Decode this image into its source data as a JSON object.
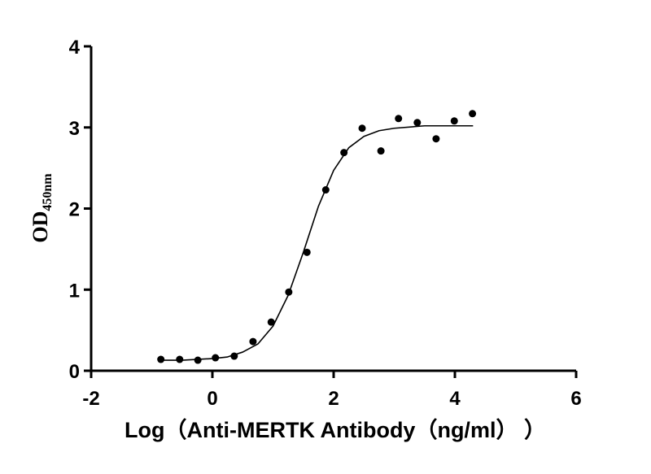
{
  "chart_data": {
    "type": "scatter",
    "y_label": "OD",
    "y_label_sub": "450nm",
    "x_label": "Log（Anti-MERTK Antibody（ng/ml）  ）",
    "xlim": [
      -2,
      6
    ],
    "xticks": [
      -2,
      0,
      2,
      4,
      6
    ],
    "ylim": [
      0,
      4
    ],
    "yticks": [
      0,
      1,
      2,
      3,
      4
    ],
    "series": [
      {
        "type": "scatter",
        "color": "#000000",
        "x": [
          -0.85,
          -0.54,
          -0.24,
          0.05,
          0.36,
          0.67,
          0.97,
          1.26,
          1.56,
          1.87,
          2.17,
          2.47,
          2.78,
          3.07,
          3.38,
          3.69,
          3.99,
          4.29
        ],
        "values": [
          0.14,
          0.14,
          0.13,
          0.16,
          0.18,
          0.36,
          0.6,
          0.97,
          1.46,
          2.23,
          2.69,
          2.99,
          2.71,
          3.11,
          3.06,
          2.86,
          3.08,
          3.17
        ]
      },
      {
        "type": "line",
        "color": "#000000",
        "x": [
          -0.85,
          -0.5,
          0,
          0.25,
          0.5,
          0.75,
          1.0,
          1.25,
          1.5,
          1.75,
          2.0,
          2.25,
          2.5,
          2.75,
          3.0,
          3.5,
          4.0,
          4.3
        ],
        "values": [
          0.13,
          0.13,
          0.15,
          0.17,
          0.23,
          0.33,
          0.55,
          0.93,
          1.46,
          2.03,
          2.47,
          2.75,
          2.89,
          2.96,
          2.99,
          3.02,
          3.02,
          3.02
        ]
      }
    ]
  }
}
